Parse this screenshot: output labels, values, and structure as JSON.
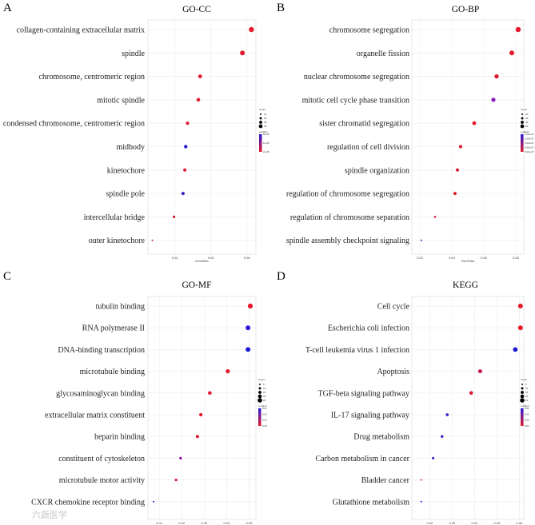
{
  "chart_data": [
    {
      "type": "scatter",
      "panel": "A",
      "title": "GO-CC",
      "xlabel": "GeneRatio",
      "xlim": [
        0.005,
        0.065
      ],
      "xticks": [
        "0.02",
        "0.04",
        "0.06"
      ],
      "xtick_values": [
        0.02,
        0.04,
        0.06
      ],
      "legend": {
        "count_title": "Count",
        "count_values": [
          "10",
          "20",
          "30",
          "40"
        ],
        "color_title": "p.adjust",
        "color_values": [
          "5e-06",
          "1e-05",
          "2e-05"
        ]
      },
      "points": [
        {
          "term": "collagen-containing extracellular matrix",
          "x": 0.0625,
          "size": 3.2,
          "color": "#e8192c"
        },
        {
          "term": "spindle",
          "x": 0.0575,
          "size": 3.0,
          "color": "#e01a30"
        },
        {
          "term": "chromosome, centromeric region",
          "x": 0.034,
          "size": 2.4,
          "color": "#e41a2c"
        },
        {
          "term": "mitotic spindle",
          "x": 0.033,
          "size": 2.3,
          "color": "#e21a2e"
        },
        {
          "term": "condensed chromosome, centromeric region",
          "x": 0.027,
          "size": 2.1,
          "color": "#de1a32"
        },
        {
          "term": "midbody",
          "x": 0.026,
          "size": 2.2,
          "color": "#2a1ad0"
        },
        {
          "term": "kinetochore",
          "x": 0.0255,
          "size": 2.0,
          "color": "#e01a30"
        },
        {
          "term": "spindle pole",
          "x": 0.0245,
          "size": 2.0,
          "color": "#3a1ac8"
        },
        {
          "term": "intercellular bridge",
          "x": 0.0195,
          "size": 1.6,
          "color": "#d81a3a"
        },
        {
          "term": "outer kinetochore",
          "x": 0.0075,
          "size": 1.0,
          "color": "#e41a2c"
        }
      ]
    },
    {
      "type": "scatter",
      "panel": "B",
      "title": "GO-BP",
      "xlabel": "GeneRatio",
      "xlim": [
        0.015,
        0.085
      ],
      "xticks": [
        "0.02",
        "0.04",
        "0.06",
        "0.08"
      ],
      "xtick_values": [
        0.02,
        0.04,
        0.06,
        0.08
      ],
      "legend": {
        "count_title": "Count",
        "count_values": [
          "20",
          "30",
          "40",
          "50"
        ],
        "color_title": "p.adjust",
        "color_values": [
          "1.00e-07",
          "2.00e-07",
          "3.00e-07",
          "4.00e-07",
          "5.00e-07"
        ]
      },
      "points": [
        {
          "term": "chromosome segregation",
          "x": 0.0815,
          "size": 3.2,
          "color": "#e8192c"
        },
        {
          "term": "organelle fission",
          "x": 0.0775,
          "size": 3.0,
          "color": "#e41a2c"
        },
        {
          "term": "nuclear chromosome segregation",
          "x": 0.068,
          "size": 2.7,
          "color": "#e21a2e"
        },
        {
          "term": "mitotic cell cycle phase transition",
          "x": 0.066,
          "size": 2.6,
          "color": "#8a1ab8"
        },
        {
          "term": "sister chromatid segregation",
          "x": 0.054,
          "size": 2.4,
          "color": "#e41a2c"
        },
        {
          "term": "regulation of cell division",
          "x": 0.0455,
          "size": 2.1,
          "color": "#e01a30"
        },
        {
          "term": "spindle organization",
          "x": 0.0435,
          "size": 2.0,
          "color": "#de1a32"
        },
        {
          "term": "regulation of chromosome segregation",
          "x": 0.042,
          "size": 2.0,
          "color": "#e41a2c"
        },
        {
          "term": "regulation of chromosome separation",
          "x": 0.0295,
          "size": 1.3,
          "color": "#d81a3a"
        },
        {
          "term": "spindle assembly checkpoint signaling",
          "x": 0.021,
          "size": 1.0,
          "color": "#3a1ac8"
        }
      ]
    },
    {
      "type": "scatter",
      "panel": "C",
      "title": "GO-MF",
      "xlabel": "GeneRatio",
      "xlim": [
        0.005,
        0.053
      ],
      "xticks": [
        "0.01",
        "0.02",
        "0.03",
        "0.04",
        "0.05"
      ],
      "xtick_values": [
        0.01,
        0.02,
        0.03,
        0.04,
        0.05
      ],
      "legend": {
        "count_title": "Count",
        "count_values": [
          "5",
          "10",
          "15",
          "20",
          "25"
        ],
        "color_title": "p.adjust",
        "color_values": [
          "0.01",
          "0.02",
          "0.03",
          "0.04"
        ]
      },
      "points": [
        {
          "term": "tubulin binding",
          "x": 0.0505,
          "size": 3.1,
          "color": "#e8192c"
        },
        {
          "term": "RNA polymerase II",
          "x": 0.0495,
          "size": 3.0,
          "color": "#2a1ad8"
        },
        {
          "term": "DNA-binding transcription",
          "x": 0.0495,
          "size": 3.0,
          "color": "#1a1ad0"
        },
        {
          "term": "microtubule binding",
          "x": 0.0405,
          "size": 2.6,
          "color": "#e01a30"
        },
        {
          "term": "glycosaminoglycan binding",
          "x": 0.0325,
          "size": 2.3,
          "color": "#de1a32"
        },
        {
          "term": "extracellular matrix constituent",
          "x": 0.0285,
          "size": 2.1,
          "color": "#e41a2c"
        },
        {
          "term": "heparin binding",
          "x": 0.027,
          "size": 2.0,
          "color": "#e01a30"
        },
        {
          "term": "constituent of cytoskeleton",
          "x": 0.0195,
          "size": 1.7,
          "color": "#9a1ab0"
        },
        {
          "term": "microtubule motor activity",
          "x": 0.0175,
          "size": 1.6,
          "color": "#e41a2c"
        },
        {
          "term": "CXCR chemokine receptor binding",
          "x": 0.0075,
          "size": 1.0,
          "color": "#2a1ad0"
        }
      ]
    },
    {
      "type": "scatter",
      "panel": "D",
      "title": "KEGG",
      "xlabel": "GeneRatio",
      "xlim": [
        0.012,
        0.062
      ],
      "xticks": [
        "0.02",
        "0.03",
        "0.04",
        "0.05",
        "0.06"
      ],
      "xtick_values": [
        0.02,
        0.03,
        0.04,
        0.05,
        0.06
      ],
      "legend": {
        "count_title": "Count",
        "count_values": [
          "5",
          "10",
          "15",
          "20",
          "25"
        ],
        "color_title": "p.adjust",
        "color_values": [
          "0.01",
          "0.02",
          "0.03",
          "0.04"
        ]
      },
      "points": [
        {
          "term": "Cell cycle",
          "x": 0.0605,
          "size": 3.0,
          "color": "#e8192c"
        },
        {
          "term": "Escherichia coli infection",
          "x": 0.0605,
          "size": 3.0,
          "color": "#e41a2c"
        },
        {
          "term": "T-cell leukemia virus 1 infection",
          "x": 0.0582,
          "size": 2.9,
          "color": "#1a1ad0"
        },
        {
          "term": "Apoptosis",
          "x": 0.0425,
          "size": 2.5,
          "color": "#c01a58"
        },
        {
          "term": "TGF-beta signaling pathway",
          "x": 0.0385,
          "size": 2.3,
          "color": "#e01a30"
        },
        {
          "term": "IL-17 signaling pathway",
          "x": 0.0278,
          "size": 1.8,
          "color": "#2a1ad0"
        },
        {
          "term": "Drug metabolism",
          "x": 0.0255,
          "size": 1.7,
          "color": "#3a1ac8"
        },
        {
          "term": "Carbon metabolism in cancer",
          "x": 0.0215,
          "size": 1.5,
          "color": "#2a1ad0"
        },
        {
          "term": "Bladder cancer",
          "x": 0.0162,
          "size": 1.0,
          "color": "#e41a2c"
        },
        {
          "term": "Glutathione metabolism",
          "x": 0.0162,
          "size": 1.0,
          "color": "#2a1ad8"
        }
      ]
    }
  ],
  "watermark": "六蔬医学"
}
